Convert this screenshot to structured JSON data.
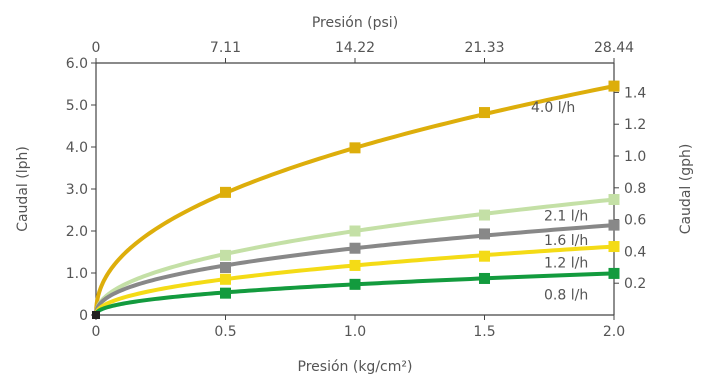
{
  "chart_data": {
    "type": "line",
    "xlabel": "Presión (kg/cm²)",
    "x2label": "Presión (psi)",
    "ylabel": "Caudal (lph)",
    "y2label": "Caudal (gph)",
    "xlim": [
      0,
      2.0
    ],
    "ylim": [
      0,
      6.0
    ],
    "y2lim": [
      0,
      1.585
    ],
    "xticks": [
      "0",
      "0.5",
      "1.0",
      "1.5",
      "2.0"
    ],
    "x2ticks": [
      "0",
      "7.11",
      "14.22",
      "21.33",
      "28.44"
    ],
    "yticks": [
      "0",
      "1.0",
      "2.0",
      "3.0",
      "4.0",
      "5.0",
      "6.0"
    ],
    "y2ticks": [
      "0.2",
      "0.4",
      "0.6",
      "0.8",
      "1.0",
      "1.2",
      "1.4"
    ],
    "grid": false,
    "x_points": [
      0,
      0.5,
      1.0,
      1.5,
      2.0
    ],
    "series": [
      {
        "name": "4.0 l/h",
        "color": "#DDAE0B",
        "values": [
          0,
          2.92,
          3.98,
          4.82,
          5.45
        ]
      },
      {
        "name": "2.1 l/h",
        "color": "#C4E0A6",
        "values": [
          0,
          1.42,
          2.0,
          2.38,
          2.75
        ]
      },
      {
        "name": "1.6 l/h",
        "color": "#888888",
        "values": [
          0,
          1.13,
          1.59,
          1.93,
          2.14
        ]
      },
      {
        "name": "1.2 l/h",
        "color": "#F4DB16",
        "values": [
          0,
          0.85,
          1.18,
          1.4,
          1.63
        ]
      },
      {
        "name": "0.8 l/h",
        "color": "#139B3E",
        "values": [
          0,
          0.52,
          0.73,
          0.87,
          0.99
        ]
      }
    ]
  }
}
